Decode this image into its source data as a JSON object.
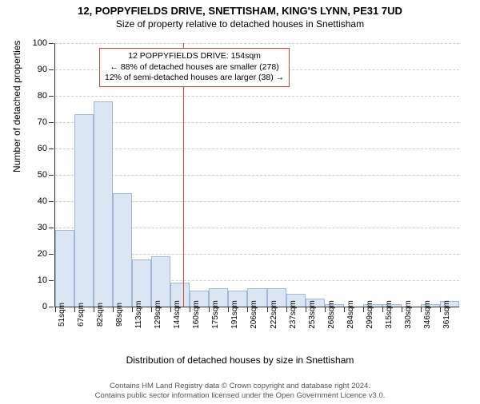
{
  "title": "12, POPPYFIELDS DRIVE, SNETTISHAM, KING'S LYNN, PE31 7UD",
  "subtitle": "Size of property relative to detached houses in Snettisham",
  "ylabel": "Number of detached properties",
  "xlabel": "Distribution of detached houses by size in Snettisham",
  "chart": {
    "type": "histogram",
    "ylim": [
      0,
      100
    ],
    "ytick_step": 10,
    "x_start": 51,
    "x_step": 15.5,
    "x_count": 21,
    "x_unit": "sqm",
    "bar_fill": "#dbe6f4",
    "bar_stroke": "#9db8d9",
    "grid_color": "#cccccc",
    "background": "#ffffff",
    "values": [
      29,
      73,
      78,
      43,
      18,
      19,
      9,
      6,
      7,
      6,
      7,
      7,
      5,
      3,
      1,
      0,
      1,
      1,
      0,
      1,
      2
    ],
    "marker_x_sqm": 154,
    "marker_color": "#e04040"
  },
  "annotation": {
    "line1": "12 POPPYFIELDS DRIVE: 154sqm",
    "line2": "← 88% of detached houses are smaller (278)",
    "line3": "12% of semi-detached houses are larger (38) →",
    "border_color": "#e04040"
  },
  "footer": {
    "line1": "Contains HM Land Registry data © Crown copyright and database right 2024.",
    "line2": "Contains public sector information licensed under the Open Government Licence v3.0."
  }
}
